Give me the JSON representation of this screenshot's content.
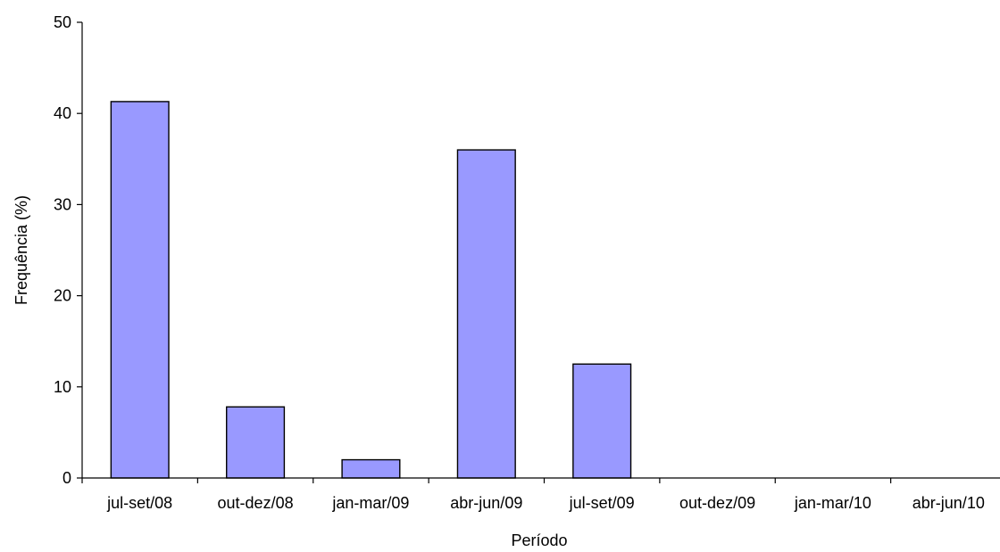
{
  "chart_data": {
    "type": "bar",
    "title": "",
    "xlabel": "Período",
    "ylabel": "Frequência (%)",
    "categories": [
      "jul-set/08",
      "out-dez/08",
      "jan-mar/09",
      "abr-jun/09",
      "jul-set/09",
      "out-dez/09",
      "jan-mar/10",
      "abr-jun/10"
    ],
    "values": [
      41.3,
      7.8,
      2.0,
      36.0,
      12.5,
      0,
      0,
      0
    ],
    "ylim": [
      0,
      50
    ],
    "yticks": [
      "0",
      "10",
      "20",
      "30",
      "40",
      "50"
    ],
    "grid": false,
    "legend": "none",
    "bar_color": "#9999ff",
    "edge_color": "#000000"
  }
}
